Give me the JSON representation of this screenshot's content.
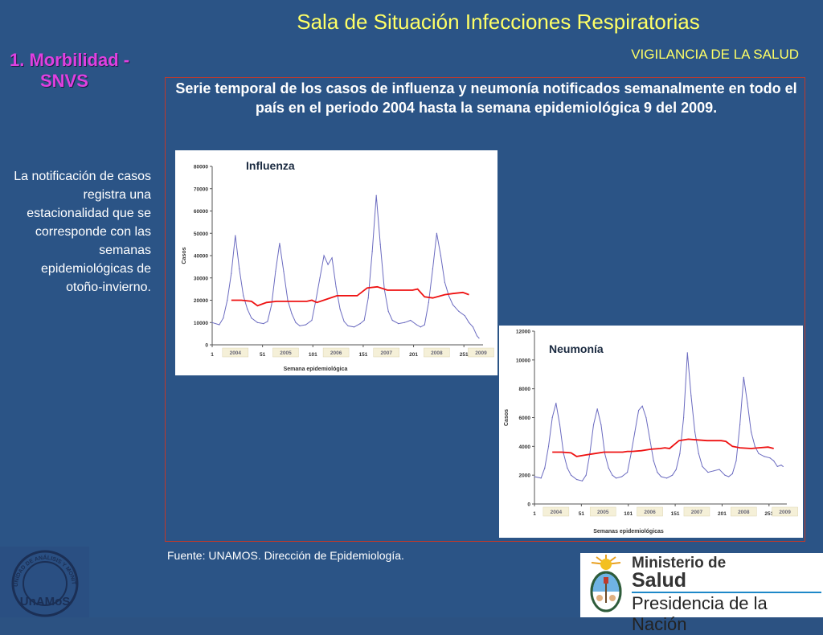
{
  "slide": {
    "title": "Sala de Situación Infecciones Respiratorias",
    "subtitle": "VIGILANCIA DE LA SALUD",
    "section_line1": "1.  Morbilidad -",
    "section_line2": "SNVS",
    "left_text": "La notificación de casos registra una estacionalidad que se corresponde con las semanas epidemiológicas de otoño-invierno.",
    "heading": "Serie temporal de los casos de influenza y neumonía notificados semanalmente en todo el país en el periodo 2004 hasta la semana epidemiológica 9 del 2009.",
    "source": "Fuente: UNAMOS. Dirección de Epidemiología.",
    "logo_left_text": "UNIDAD DE ANÁLISIS Y MONITOREO DE LA SALUD",
    "logo_left_abbr": "UnAMoS",
    "logo_right_line1": "Ministerio de",
    "logo_right_line2": "Salud",
    "logo_right_line3": "Presidencia de la Nación"
  },
  "colors": {
    "series": "#6b6bc0",
    "trend": "#ee1111",
    "title": "#ffff66",
    "section": "#e040e0"
  },
  "chart_data": [
    {
      "type": "line",
      "title": "Influenza",
      "xlabel": "Semana epidemiológica",
      "ylabel": "Casos",
      "ylim": [
        0,
        80000
      ],
      "yticks": [
        0,
        10000,
        20000,
        30000,
        40000,
        50000,
        60000,
        70000,
        80000
      ],
      "xlim": [
        1,
        270
      ],
      "xticks": [
        1,
        51,
        101,
        151,
        201,
        251
      ],
      "year_labels": [
        {
          "label": "2004",
          "x": 24
        },
        {
          "label": "2005",
          "x": 74
        },
        {
          "label": "2006",
          "x": 124
        },
        {
          "label": "2007",
          "x": 174
        },
        {
          "label": "2008",
          "x": 224
        },
        {
          "label": "2009",
          "x": 268
        }
      ],
      "series": {
        "x": [
          1,
          8,
          12,
          16,
          20,
          24,
          28,
          32,
          36,
          40,
          46,
          52,
          56,
          60,
          64,
          68,
          72,
          76,
          80,
          84,
          88,
          94,
          100,
          104,
          108,
          112,
          116,
          120,
          124,
          128,
          132,
          136,
          142,
          148,
          152,
          156,
          160,
          164,
          168,
          172,
          176,
          180,
          186,
          192,
          198,
          204,
          208,
          212,
          216,
          220,
          224,
          228,
          232,
          236,
          240,
          246,
          252,
          256,
          260,
          264,
          266
        ],
        "values": [
          10000,
          9000,
          12000,
          20000,
          32000,
          49000,
          34000,
          22000,
          16000,
          12000,
          10000,
          9500,
          10500,
          18000,
          33000,
          45500,
          33000,
          20000,
          14000,
          10000,
          8500,
          9000,
          11000,
          20000,
          30000,
          40000,
          36000,
          39000,
          26000,
          16000,
          10500,
          8500,
          8000,
          9500,
          11000,
          21000,
          42000,
          67000,
          45000,
          25000,
          15000,
          11000,
          9500,
          10000,
          11000,
          9000,
          8000,
          9000,
          19000,
          34000,
          50000,
          40000,
          28000,
          22000,
          18000,
          15000,
          13000,
          10000,
          8000,
          4000,
          3000
        ]
      },
      "trend": {
        "x": [
          20,
          30,
          40,
          46,
          55,
          65,
          75,
          85,
          95,
          100,
          105,
          115,
          125,
          135,
          140,
          145,
          155,
          165,
          175,
          185,
          195,
          200,
          205,
          212,
          220,
          232,
          240,
          250,
          256
        ],
        "values": [
          20000,
          20000,
          19500,
          17500,
          19000,
          19500,
          19500,
          19500,
          19500,
          20000,
          19000,
          20500,
          22000,
          22000,
          22000,
          22000,
          25500,
          26000,
          24500,
          24500,
          24500,
          24500,
          25000,
          21500,
          21000,
          22500,
          23000,
          23500,
          22500
        ]
      }
    },
    {
      "type": "line",
      "title": "Neumonía",
      "xlabel": "Semanas epidemiológicas",
      "ylabel": "Casos",
      "ylim": [
        0,
        12000
      ],
      "yticks": [
        0,
        2000,
        4000,
        6000,
        8000,
        10000,
        12000
      ],
      "xlim": [
        1,
        270
      ],
      "xticks": [
        1,
        51,
        101,
        151,
        201,
        251
      ],
      "year_labels": [
        {
          "label": "2004",
          "x": 24
        },
        {
          "label": "2005",
          "x": 74
        },
        {
          "label": "2006",
          "x": 124
        },
        {
          "label": "2007",
          "x": 174
        },
        {
          "label": "2008",
          "x": 224
        },
        {
          "label": "2009",
          "x": 268
        }
      ],
      "series": {
        "x": [
          1,
          8,
          12,
          16,
          20,
          24,
          28,
          32,
          36,
          40,
          46,
          52,
          56,
          60,
          64,
          68,
          72,
          76,
          80,
          84,
          88,
          94,
          100,
          104,
          108,
          112,
          116,
          120,
          124,
          128,
          132,
          136,
          142,
          148,
          152,
          156,
          160,
          164,
          168,
          172,
          176,
          180,
          186,
          192,
          198,
          204,
          208,
          212,
          216,
          220,
          224,
          228,
          232,
          236,
          240,
          246,
          252,
          256,
          260,
          264,
          266
        ],
        "values": [
          1900,
          1800,
          2500,
          4000,
          6000,
          7000,
          5500,
          3500,
          2500,
          2000,
          1700,
          1600,
          2000,
          3500,
          5500,
          6600,
          5500,
          3500,
          2500,
          2000,
          1800,
          1900,
          2200,
          3500,
          5000,
          6500,
          6800,
          6000,
          4500,
          3000,
          2200,
          1900,
          1800,
          2000,
          2400,
          3500,
          6000,
          10500,
          7500,
          5000,
          3500,
          2600,
          2200,
          2300,
          2400,
          2000,
          1900,
          2100,
          3000,
          5500,
          8800,
          7000,
          5000,
          4000,
          3500,
          3300,
          3200,
          3000,
          2600,
          2700,
          2600
        ]
      },
      "trend": {
        "x": [
          20,
          30,
          40,
          46,
          55,
          65,
          75,
          85,
          95,
          100,
          105,
          115,
          125,
          135,
          140,
          145,
          155,
          165,
          175,
          185,
          195,
          200,
          205,
          212,
          220,
          232,
          240,
          250,
          256
        ],
        "values": [
          3600,
          3600,
          3550,
          3300,
          3400,
          3500,
          3600,
          3600,
          3600,
          3650,
          3650,
          3700,
          3800,
          3850,
          3900,
          3850,
          4400,
          4500,
          4450,
          4400,
          4400,
          4400,
          4350,
          4000,
          3900,
          3850,
          3900,
          3950,
          3850
        ]
      }
    }
  ]
}
